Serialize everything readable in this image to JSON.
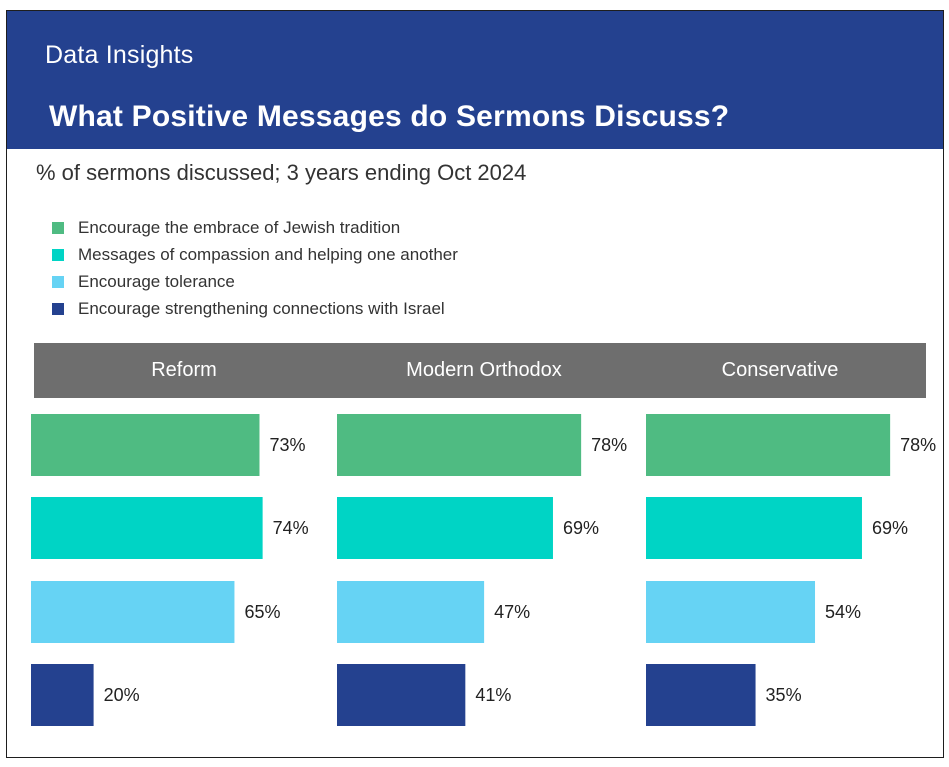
{
  "header": {
    "kicker": "Data Insights",
    "title": "What Positive Messages do Sermons Discuss?"
  },
  "chart_data": {
    "type": "bar",
    "orientation": "horizontal",
    "subtitle": "% of sermons discussed; 3 years ending Oct 2024",
    "legend_position": "top-left",
    "series": [
      {
        "name": "Encourage the embrace of Jewish tradition",
        "color": "#4fbb82"
      },
      {
        "name": "Messages of compassion and helping one another",
        "color": "#00d4c5"
      },
      {
        "name": "Encourage tolerance",
        "color": "#66d3f4"
      },
      {
        "name": "Encourage strengthening connections with Israel",
        "color": "#24418f"
      }
    ],
    "panels": [
      {
        "name": "Reform",
        "values": [
          73,
          74,
          65,
          20
        ],
        "labels": [
          "73%",
          "74%",
          "65%",
          "20%"
        ]
      },
      {
        "name": "Modern Orthodox",
        "values": [
          78,
          69,
          47,
          41
        ],
        "labels": [
          "78%",
          "69%",
          "47%",
          "41%"
        ]
      },
      {
        "name": "Conservative",
        "values": [
          78,
          69,
          54,
          35
        ],
        "labels": [
          "78%",
          "69%",
          "54%",
          "35%"
        ]
      }
    ],
    "xlim": [
      0,
      100
    ]
  }
}
